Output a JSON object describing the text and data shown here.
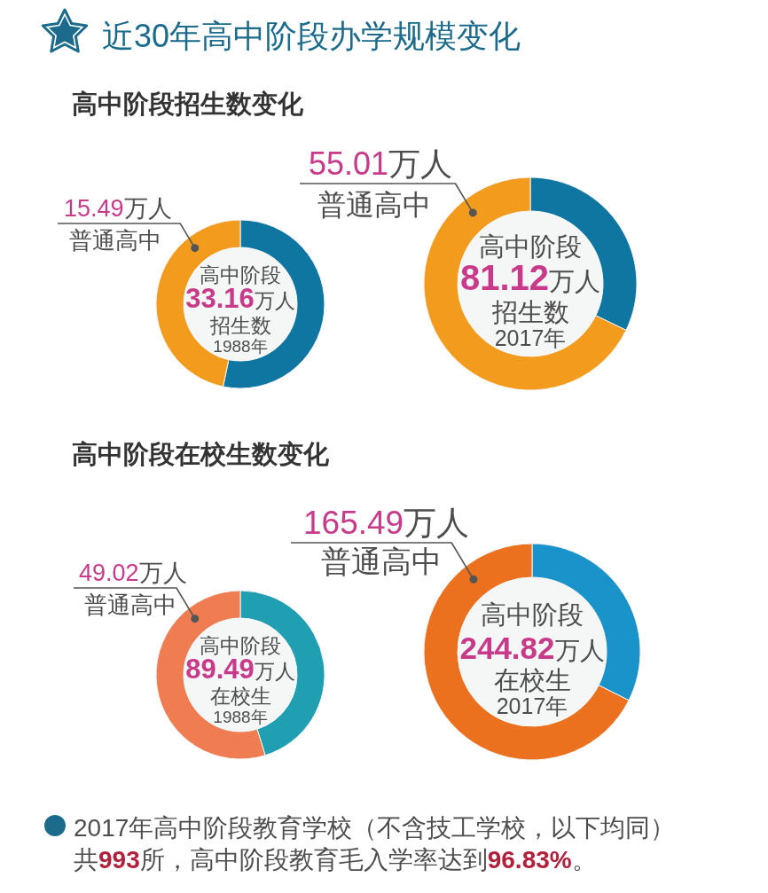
{
  "chart_data": [
    {
      "type": "donut",
      "title": "近30年高中阶段办学规模变化",
      "subtitle": "高中阶段招生数变化",
      "categories": [
        null,
        "普通高中"
      ],
      "values": [
        17.67,
        15.49
      ],
      "colors": [
        "#0f76a2",
        "#f29b1c"
      ],
      "value_labels": [
        null,
        "15.49万人"
      ],
      "annotations": [
        "高中阶段",
        "33.16万人",
        "招生数",
        "1988年"
      ]
    },
    {
      "type": "donut",
      "categories": [
        null,
        "普通高中"
      ],
      "values": [
        26.11,
        55.01
      ],
      "colors": [
        "#0f76a2",
        "#f29b1c"
      ],
      "value_labels": [
        null,
        "55.01万人"
      ],
      "annotations": [
        "高中阶段",
        "81.12万人",
        "招生数",
        "2017年"
      ]
    },
    {
      "type": "donut",
      "subtitle": "高中阶段在校生数变化",
      "categories": [
        null,
        "普通高中"
      ],
      "values": [
        40.47,
        49.02
      ],
      "colors": [
        "#1f9fb1",
        "#ef7d51"
      ],
      "value_labels": [
        null,
        "49.02万人"
      ],
      "annotations": [
        "高中阶段",
        "89.49万人",
        "在校生",
        "1988年"
      ]
    },
    {
      "type": "donut",
      "categories": [
        null,
        "普通高中"
      ],
      "values": [
        79.33,
        165.49
      ],
      "colors": [
        "#1993c9",
        "#ec711f"
      ],
      "value_labels": [
        null,
        "165.49万人"
      ],
      "annotations": [
        "高中阶段",
        "244.82万人",
        "在校生",
        "2017年",
        "2017年高中阶段教育学校（不含技工学校，以下均同）共993所，高中阶段教育毛入学率达到96.83%。"
      ]
    }
  ]
}
